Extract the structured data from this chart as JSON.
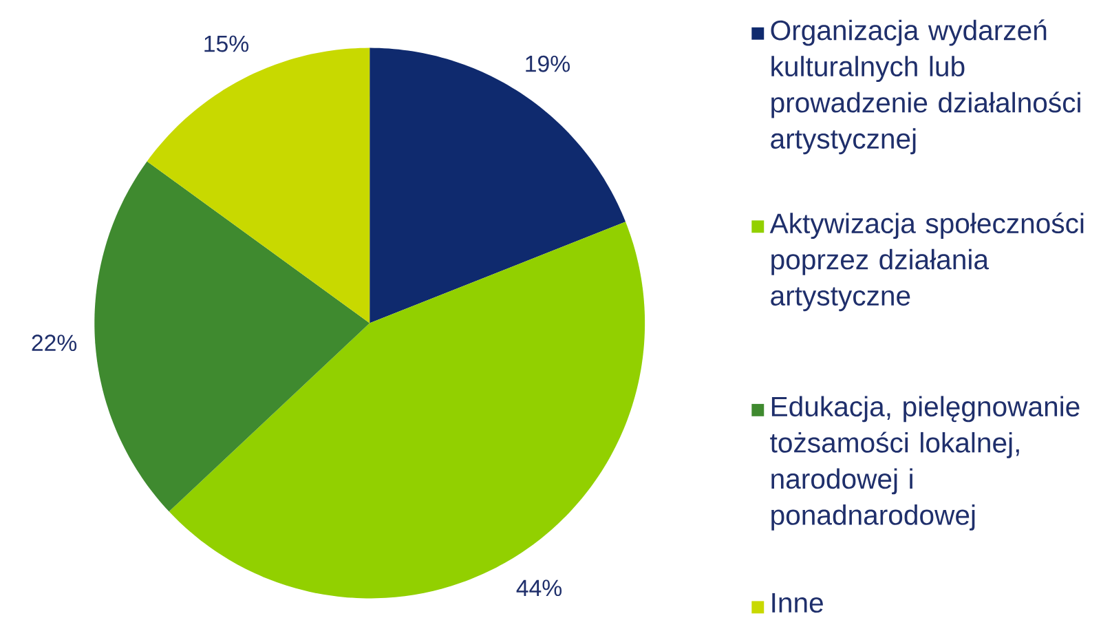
{
  "chart_data": {
    "type": "pie",
    "categories": [
      "Organizacja wydarzeń kulturalnych lub prowadzenie działalności artystycznej",
      "Aktywizacja społeczności poprzez działania artystyczne",
      "Edukacja, pielęgnowanie tożsamości lokalnej, narodowej i ponadnarodowej",
      "Inne"
    ],
    "values": [
      19,
      44,
      22,
      15
    ],
    "value_labels": [
      "19%",
      "44%",
      "22%",
      "15%"
    ],
    "colors": [
      "#0f2a6e",
      "#92d000",
      "#3f8a2f",
      "#c8d900"
    ],
    "legend": "right"
  }
}
